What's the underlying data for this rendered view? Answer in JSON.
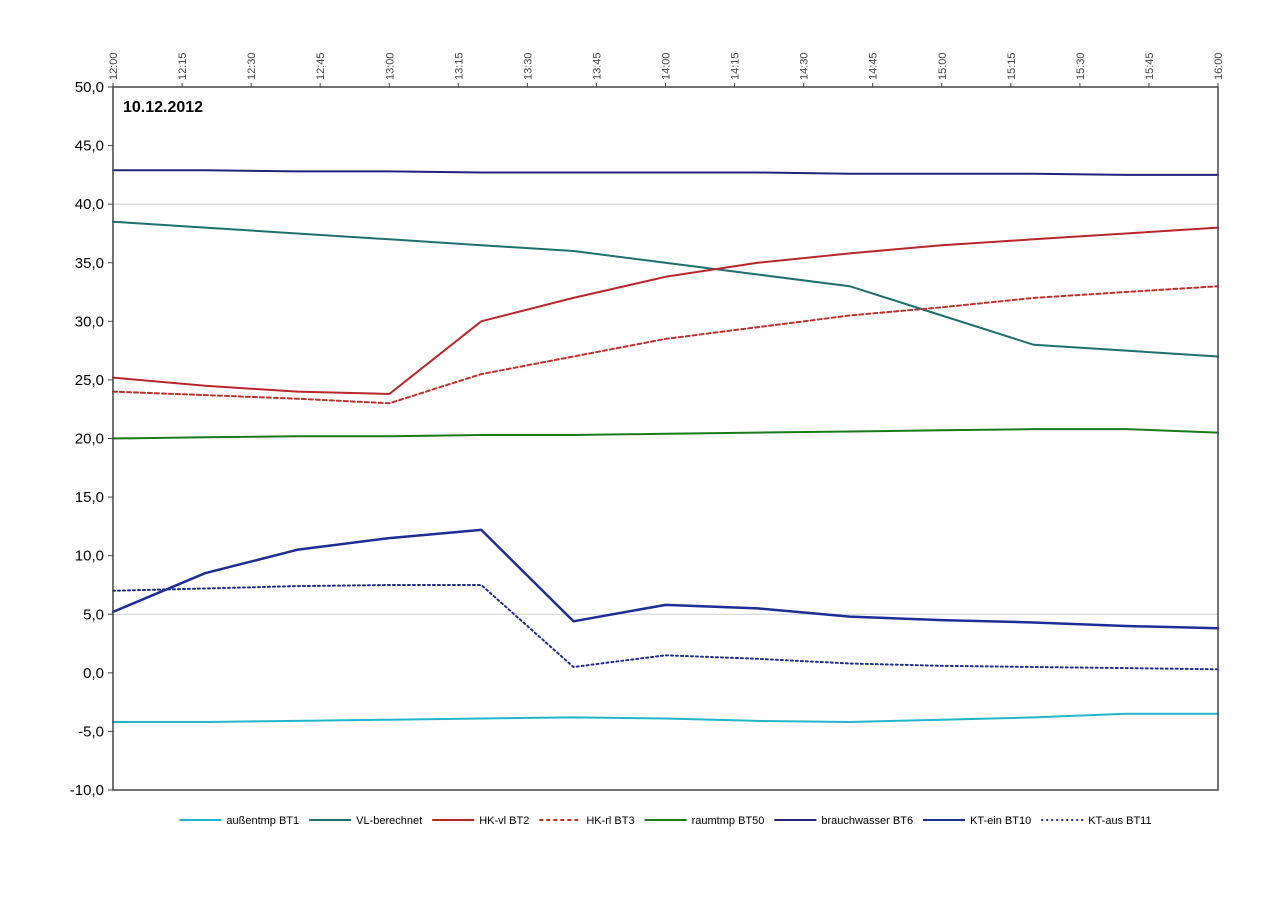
{
  "chart_data": {
    "type": "line",
    "title": "",
    "annotation": "10.12.2012",
    "xlabel": "",
    "ylabel": "",
    "x_ticks": [
      "12:00",
      "12:15",
      "12:30",
      "12:45",
      "13:00",
      "13:15",
      "13:30",
      "13:45",
      "14:00",
      "14:15",
      "14:30",
      "14:45",
      "15:00",
      "15:15",
      "15:30",
      "15:45",
      "16:00"
    ],
    "y_ticks": [
      "50,0",
      "45,0",
      "40,0",
      "35,0",
      "30,0",
      "25,0",
      "20,0",
      "15,0",
      "10,0",
      "5,0",
      "0,0",
      "-5,0",
      "-10,0"
    ],
    "xlim": [
      0,
      240
    ],
    "ylim": [
      -10,
      50
    ],
    "gridlines_y": [
      5,
      40
    ],
    "legend_position": "bottom",
    "series": [
      {
        "name": "außentmp BT1",
        "color": "#22b5c8",
        "dash": "solid",
        "width": 2,
        "x": [
          0,
          20,
          40,
          60,
          80,
          100,
          120,
          140,
          160,
          180,
          200,
          220,
          240
        ],
        "y": [
          -4.2,
          -4.2,
          -4.1,
          -4.0,
          -3.9,
          -3.8,
          -3.9,
          -4.1,
          -4.2,
          -4.0,
          -3.8,
          -3.5,
          -3.5
        ]
      },
      {
        "name": "VL-berechnet",
        "color": "#1f6f6f",
        "dash": "solid",
        "width": 2,
        "x": [
          0,
          20,
          40,
          60,
          80,
          100,
          120,
          140,
          160,
          180,
          200,
          220,
          240
        ],
        "y": [
          38.5,
          38.0,
          37.5,
          37.0,
          36.5,
          36.0,
          35.0,
          34.0,
          33.0,
          30.5,
          28.0,
          27.5,
          27.0
        ]
      },
      {
        "name": "HK-vl BT2",
        "color": "#b8262b",
        "dash": "solid",
        "width": 2,
        "x": [
          0,
          20,
          40,
          60,
          80,
          100,
          120,
          140,
          160,
          180,
          200,
          220,
          240
        ],
        "y": [
          25.2,
          24.5,
          24.0,
          23.8,
          30.0,
          32.0,
          33.8,
          35.0,
          35.8,
          36.5,
          37.0,
          37.5,
          38.0
        ]
      },
      {
        "name": "HK-rl BT3",
        "color": "#c0302c",
        "dash": "dashed",
        "width": 2,
        "x": [
          0,
          20,
          40,
          60,
          80,
          100,
          120,
          140,
          160,
          180,
          200,
          220,
          240
        ],
        "y": [
          24.0,
          23.7,
          23.4,
          23.0,
          25.5,
          27.0,
          28.5,
          29.5,
          30.5,
          31.2,
          32.0,
          32.5,
          33.0
        ]
      },
      {
        "name": "raumtmp BT50",
        "color": "#1a7a1a",
        "dash": "solid",
        "width": 2,
        "x": [
          0,
          20,
          40,
          60,
          80,
          100,
          120,
          140,
          160,
          180,
          200,
          220,
          240
        ],
        "y": [
          20.0,
          20.1,
          20.2,
          20.2,
          20.3,
          20.3,
          20.4,
          20.5,
          20.6,
          20.7,
          20.8,
          20.8,
          20.5
        ]
      },
      {
        "name": "brauchwasser BT6",
        "color": "#22237a",
        "dash": "solid",
        "width": 2,
        "x": [
          0,
          20,
          40,
          60,
          80,
          100,
          120,
          140,
          160,
          180,
          200,
          220,
          240
        ],
        "y": [
          42.9,
          42.9,
          42.8,
          42.8,
          42.7,
          42.7,
          42.7,
          42.7,
          42.6,
          42.6,
          42.6,
          42.5,
          42.5
        ]
      },
      {
        "name": "KT-ein BT10",
        "color": "#1e2d95",
        "dash": "solid",
        "width": 2.5,
        "x": [
          0,
          20,
          40,
          60,
          80,
          100,
          120,
          140,
          160,
          180,
          200,
          220,
          240
        ],
        "y": [
          5.2,
          8.5,
          10.5,
          11.5,
          12.2,
          4.4,
          5.8,
          5.5,
          4.8,
          4.5,
          4.3,
          4.0,
          3.8
        ]
      },
      {
        "name": "KT-aus BT11",
        "color": "#1e2d95",
        "dash": "dotted",
        "width": 2,
        "x": [
          0,
          20,
          40,
          60,
          80,
          100,
          120,
          140,
          160,
          180,
          200,
          220,
          240
        ],
        "y": [
          7.0,
          7.2,
          7.4,
          7.5,
          7.5,
          0.5,
          1.5,
          1.2,
          0.8,
          0.6,
          0.5,
          0.4,
          0.3
        ]
      }
    ]
  }
}
